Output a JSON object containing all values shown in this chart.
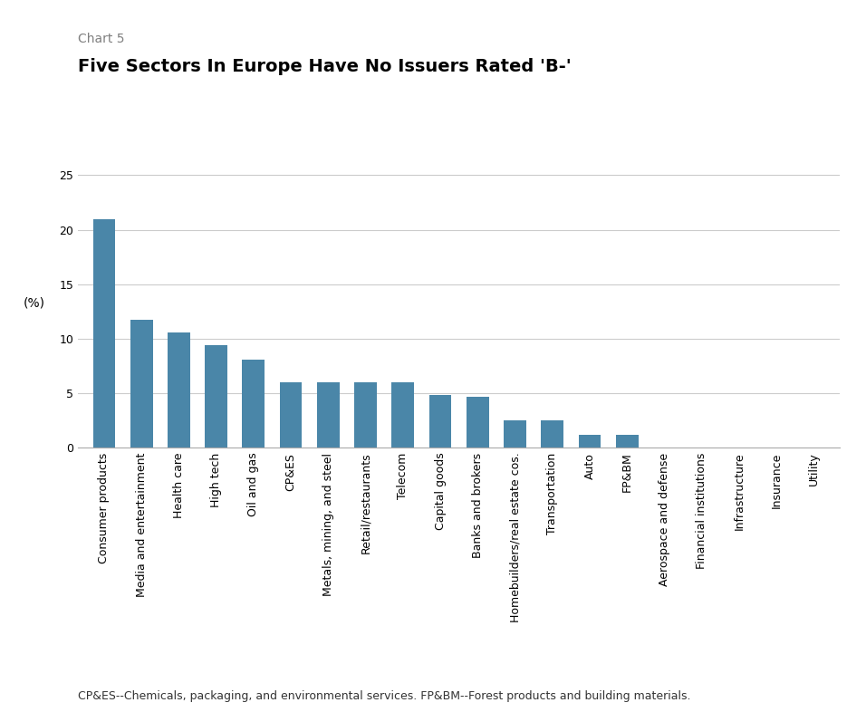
{
  "chart_label": "Chart 5",
  "title": "Five Sectors In Europe Have No Issuers Rated 'B-'",
  "categories": [
    "Consumer products",
    "Media and entertainment",
    "Health care",
    "High tech",
    "Oil and gas",
    "CP&ES",
    "Metals, mining, and steel",
    "Retail/restaurants",
    "Telecom",
    "Capital goods",
    "Banks and brokers",
    "Homebuilders/real estate cos.",
    "Transportation",
    "Auto",
    "FP&BM",
    "Aerospace and defense",
    "Financial institutions",
    "Infrastructure",
    "Insurance",
    "Utility"
  ],
  "values": [
    21.0,
    11.7,
    10.6,
    9.4,
    8.1,
    6.0,
    6.0,
    6.0,
    6.0,
    4.8,
    4.7,
    2.5,
    2.5,
    1.2,
    1.2,
    0.0,
    0.0,
    0.0,
    0.0,
    0.0
  ],
  "bar_color": "#4a86a8",
  "ylabel": "(%)",
  "yticks": [
    0,
    5,
    10,
    15,
    20,
    25
  ],
  "ylim": [
    0,
    26.5
  ],
  "footnote": "CP&ES--Chemicals, packaging, and environmental services. FP&BM--Forest products and building materials.",
  "background_color": "#ffffff",
  "chart_label_color": "#808080",
  "title_fontsize": 14,
  "chart_label_fontsize": 10,
  "ylabel_fontsize": 10,
  "tick_fontsize": 9,
  "footnote_fontsize": 9
}
